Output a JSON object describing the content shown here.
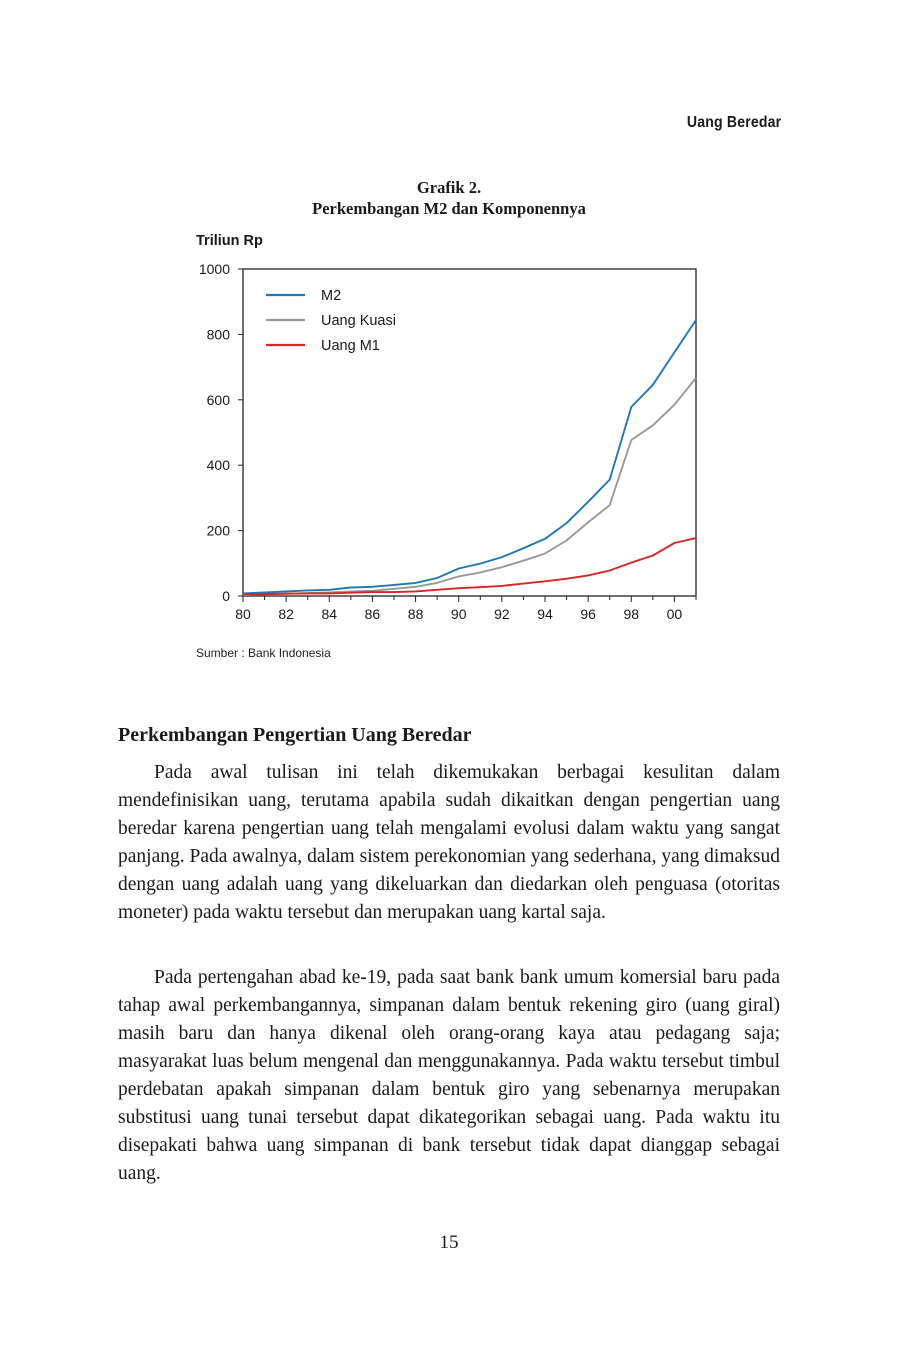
{
  "header": {
    "running_title": "Uang Beredar"
  },
  "figure": {
    "label": "Grafik 2.",
    "title": "Perkembangan M2 dan Komponennya",
    "source": "Sumber : Bank Indonesia"
  },
  "chart_data": {
    "type": "line",
    "ylabel": "Triliun Rp",
    "xlabel": "",
    "ylim": [
      0,
      1000
    ],
    "xlim": [
      1980,
      2001
    ],
    "yticks": [
      0,
      200,
      400,
      600,
      800,
      1000
    ],
    "xticks": [
      "80",
      "82",
      "84",
      "86",
      "88",
      "90",
      "92",
      "94",
      "96",
      "98",
      "00"
    ],
    "grid": false,
    "legend_position": "top-left",
    "x": [
      1980,
      1981,
      1982,
      1983,
      1984,
      1985,
      1986,
      1987,
      1988,
      1989,
      1990,
      1991,
      1992,
      1993,
      1994,
      1995,
      1996,
      1997,
      1998,
      1999,
      2000,
      2001
    ],
    "series": [
      {
        "name": "M2",
        "color": "#1f77b4",
        "values": [
          8,
          11,
          14,
          17,
          19,
          26,
          28,
          34,
          40,
          55,
          84,
          99,
          119,
          146,
          175,
          223,
          288,
          356,
          578,
          646,
          745,
          844
        ]
      },
      {
        "name": "Uang Kuasi",
        "color": "#999999",
        "values": [
          3,
          5,
          7,
          9,
          11,
          14,
          16,
          22,
          28,
          40,
          60,
          72,
          88,
          108,
          130,
          170,
          225,
          278,
          477,
          522,
          585,
          667
        ]
      },
      {
        "name": "Uang M1",
        "color": "#d62728",
        "values": [
          5,
          6,
          7,
          8,
          8,
          10,
          12,
          12,
          14,
          19,
          24,
          27,
          31,
          38,
          45,
          53,
          63,
          78,
          102,
          124,
          162,
          177
        ]
      }
    ]
  },
  "section": {
    "heading": "Perkembangan Pengertian Uang Beredar"
  },
  "paragraphs": {
    "p1": "Pada awal tulisan ini telah dikemukakan berbagai kesulitan dalam mendefinisikan uang, terutama apabila sudah dikaitkan dengan pengertian uang beredar karena pengertian uang telah mengalami evolusi dalam waktu yang sangat panjang. Pada awalnya, dalam sistem perekonomian yang sederhana, yang dimaksud dengan uang adalah uang yang dikeluarkan dan diedarkan oleh penguasa (otoritas moneter) pada waktu tersebut dan merupakan uang kartal saja.",
    "p2": "Pada pertengahan abad ke-19, pada saat bank bank umum komersial baru pada tahap awal perkembangannya, simpanan dalam bentuk rekening giro (uang giral) masih baru dan hanya dikenal oleh orang-orang kaya atau pedagang saja; masyarakat luas belum mengenal dan menggunakan­nya. Pada waktu tersebut timbul perdebatan apakah simpanan dalam bentuk giro yang sebenarnya merupakan substitusi uang tunai tersebut dapat dikategorikan sebagai uang. Pada waktu itu disepakati bahwa uang simpanan di bank tersebut tidak dapat dianggap sebagai uang."
  },
  "footer": {
    "page_number": "15"
  }
}
